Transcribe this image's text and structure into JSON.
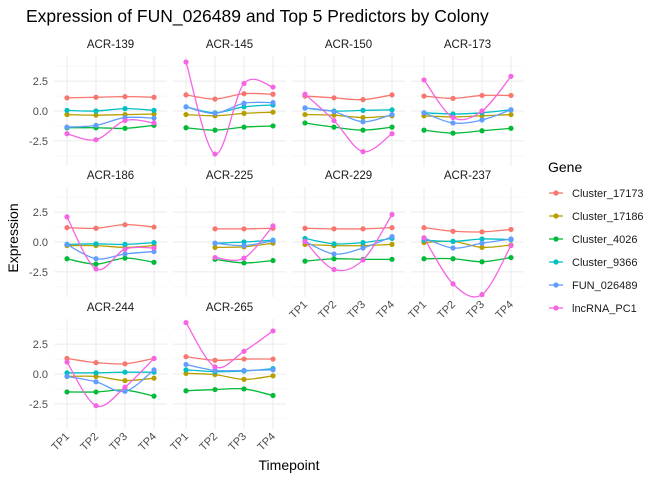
{
  "chart_data": {
    "type": "line",
    "title": "Expression of FUN_026489 and Top 5 Predictors by Colony",
    "xlabel": "Timepoint",
    "ylabel": "Expression",
    "categories": [
      "TP1",
      "TP2",
      "TP3",
      "TP4"
    ],
    "ylim": [
      -4.6,
      4.6
    ],
    "y_ticks": [
      -2.5,
      0.0,
      2.5
    ],
    "y_tick_labels": [
      "-2.5",
      "0.0",
      "2.5"
    ],
    "legend": {
      "title": "Gene",
      "placement": "right",
      "entries": [
        {
          "name": "Cluster_17173",
          "color": "#F8766D"
        },
        {
          "name": "Cluster_17186",
          "color": "#B79F00"
        },
        {
          "name": "Cluster_4026",
          "color": "#00BA38"
        },
        {
          "name": "Cluster_9366",
          "color": "#00BFC4"
        },
        {
          "name": "FUN_026489",
          "color": "#619CFF"
        },
        {
          "name": "lncRNA_PC1",
          "color": "#F564E3"
        }
      ]
    },
    "panels": [
      {
        "label": "ACR-139",
        "series": {
          "Cluster_17173": [
            1.1,
            1.15,
            1.2,
            1.15
          ],
          "Cluster_17186": [
            -0.3,
            -0.35,
            -0.3,
            -0.25
          ],
          "Cluster_4026": [
            -1.4,
            -1.4,
            -1.45,
            -1.2
          ],
          "Cluster_9366": [
            0.05,
            0.0,
            0.2,
            0.05
          ],
          "FUN_026489": [
            -1.35,
            -1.2,
            -0.55,
            -0.6
          ],
          "lncRNA_PC1": [
            -1.9,
            -2.4,
            -0.8,
            -1.0
          ]
        }
      },
      {
        "label": "ACR-145",
        "series": {
          "Cluster_17173": [
            1.35,
            1.0,
            1.45,
            1.4
          ],
          "Cluster_17186": [
            -0.3,
            -0.4,
            -0.2,
            -0.1
          ],
          "Cluster_4026": [
            -1.4,
            -1.6,
            -1.35,
            -1.25
          ],
          "Cluster_9366": [
            0.35,
            -0.15,
            0.35,
            0.5
          ],
          "FUN_026489": [
            0.35,
            -0.2,
            0.65,
            0.7
          ],
          "lncRNA_PC1": [
            4.1,
            -3.6,
            2.3,
            2.0
          ]
        }
      },
      {
        "label": "ACR-150",
        "series": {
          "Cluster_17173": [
            1.25,
            1.1,
            0.95,
            1.35
          ],
          "Cluster_17186": [
            -0.3,
            -0.35,
            -0.55,
            -0.4
          ],
          "Cluster_4026": [
            -1.0,
            -1.35,
            -1.6,
            -1.35
          ],
          "Cluster_9366": [
            0.25,
            0.0,
            0.05,
            0.1
          ],
          "FUN_026489": [
            0.25,
            -0.05,
            -0.9,
            -0.3
          ],
          "lncRNA_PC1": [
            1.4,
            -0.8,
            -3.4,
            -1.9
          ]
        }
      },
      {
        "label": "ACR-173",
        "series": {
          "Cluster_17173": [
            1.25,
            1.05,
            1.3,
            1.3
          ],
          "Cluster_17186": [
            -0.4,
            -0.5,
            -0.4,
            -0.3
          ],
          "Cluster_4026": [
            -1.6,
            -1.85,
            -1.65,
            -1.45
          ],
          "Cluster_9366": [
            -0.15,
            -0.25,
            -0.15,
            0.1
          ],
          "FUN_026489": [
            -0.15,
            -1.0,
            -0.75,
            0.1
          ],
          "lncRNA_PC1": [
            2.6,
            -0.55,
            0.0,
            2.9
          ]
        }
      },
      {
        "label": "ACR-186",
        "series": {
          "Cluster_17173": [
            1.2,
            1.15,
            1.45,
            1.25
          ],
          "Cluster_17186": [
            -0.3,
            -0.3,
            -0.45,
            -0.3
          ],
          "Cluster_4026": [
            -1.4,
            -1.85,
            -1.35,
            -1.7
          ],
          "Cluster_9366": [
            -0.2,
            -0.15,
            -0.2,
            -0.05
          ],
          "FUN_026489": [
            -0.2,
            -1.4,
            -1.0,
            -0.8
          ],
          "lncRNA_PC1": [
            2.1,
            -2.25,
            -0.6,
            -0.5
          ]
        }
      },
      {
        "label": "ACR-225",
        "series": {
          "Cluster_17173": [
            null,
            1.1,
            1.1,
            1.15
          ],
          "Cluster_17186": [
            null,
            -0.45,
            -0.4,
            -0.1
          ],
          "Cluster_4026": [
            null,
            -1.45,
            -1.75,
            -1.55
          ],
          "Cluster_9366": [
            null,
            -0.1,
            0.0,
            0.15
          ],
          "FUN_026489": [
            null,
            -0.1,
            -0.3,
            0.1
          ],
          "lncRNA_PC1": [
            null,
            -1.3,
            -1.35,
            1.35
          ]
        }
      },
      {
        "label": "ACR-229",
        "series": {
          "Cluster_17173": [
            1.15,
            1.1,
            1.1,
            1.2
          ],
          "Cluster_17186": [
            -0.2,
            -0.3,
            -0.3,
            -0.2
          ],
          "Cluster_4026": [
            -1.6,
            -1.4,
            -1.45,
            -1.45
          ],
          "Cluster_9366": [
            0.3,
            -0.15,
            -0.05,
            0.3
          ],
          "FUN_026489": [
            0.05,
            -1.0,
            -0.5,
            0.45
          ],
          "lncRNA_PC1": [
            0.05,
            -2.3,
            -1.5,
            2.3
          ]
        }
      },
      {
        "label": "ACR-237",
        "series": {
          "Cluster_17173": [
            1.2,
            0.9,
            0.85,
            1.05
          ],
          "Cluster_17186": [
            -0.05,
            0.05,
            -0.45,
            -0.25
          ],
          "Cluster_4026": [
            -1.4,
            -1.4,
            -1.65,
            -1.3
          ],
          "Cluster_9366": [
            0.15,
            0.05,
            0.25,
            0.2
          ],
          "FUN_026489": [
            0.35,
            -0.5,
            -0.1,
            0.25
          ],
          "lncRNA_PC1": [
            0.35,
            -3.5,
            -4.4,
            -0.3
          ]
        }
      },
      {
        "label": "ACR-244",
        "series": {
          "Cluster_17173": [
            1.3,
            0.95,
            0.85,
            1.3
          ],
          "Cluster_17186": [
            -0.2,
            -0.2,
            -0.55,
            -0.35
          ],
          "Cluster_4026": [
            -1.5,
            -1.5,
            -1.35,
            -1.85
          ],
          "Cluster_9366": [
            0.1,
            0.1,
            0.15,
            0.15
          ],
          "FUN_026489": [
            -0.2,
            -0.65,
            -1.45,
            0.35
          ],
          "lncRNA_PC1": [
            1.0,
            -2.65,
            -1.1,
            1.3
          ]
        }
      },
      {
        "label": "ACR-265",
        "series": {
          "Cluster_17173": [
            1.45,
            1.15,
            1.25,
            1.25
          ],
          "Cluster_17186": [
            0.05,
            -0.05,
            -0.45,
            -0.15
          ],
          "Cluster_4026": [
            -1.4,
            -1.3,
            -1.25,
            -1.8
          ],
          "Cluster_9366": [
            0.35,
            0.2,
            0.25,
            0.45
          ],
          "FUN_026489": [
            0.8,
            0.3,
            0.3,
            0.35
          ],
          "lncRNA_PC1": [
            4.3,
            0.6,
            1.9,
            3.6
          ]
        }
      }
    ]
  }
}
